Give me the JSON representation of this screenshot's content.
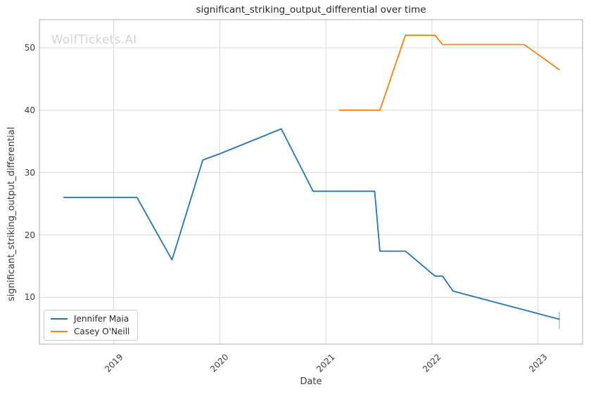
{
  "title": "significant_striking_output_differential over time",
  "watermark": "WolfTickets.AI",
  "axes": {
    "x_label": "Date",
    "y_label": "significant_striking_output_differential"
  },
  "legend": {
    "items": [
      {
        "label": "Jennifer Maia",
        "color": "#1f77b4"
      },
      {
        "label": "Casey O'Neill",
        "color": "#ff7f0e"
      }
    ]
  },
  "colors": {
    "grid": "#d9d9d9",
    "spine": "#ababab",
    "tick_text": "#3c3c3c",
    "title_text": "#262626",
    "watermark_text": "#d2d2d2",
    "series_blue": "#1f77b4",
    "series_orange": "#ff7f0e"
  },
  "chart_data": {
    "type": "line",
    "title": "significant_striking_output_differential over time",
    "xlabel": "Date",
    "ylabel": "significant_striking_output_differential",
    "xlim": [
      2018.3,
      2023.42
    ],
    "ylim": [
      2.5,
      54.5
    ],
    "xticks": [
      2019,
      2020,
      2021,
      2022,
      2023
    ],
    "yticks": [
      10,
      20,
      30,
      40,
      50
    ],
    "grid": true,
    "legend_position": "lower left",
    "series": [
      {
        "name": "Jennifer Maia",
        "color": "#1f77b4",
        "x": [
          2018.53,
          2019.22,
          2019.55,
          2019.84,
          2020.0,
          2020.58,
          2020.88,
          2021.46,
          2021.51,
          2021.75,
          2022.03,
          2022.1,
          2022.2,
          2023.2
        ],
        "y": [
          26,
          26,
          16,
          32,
          33,
          37,
          27,
          27,
          17.4,
          17.4,
          13.4,
          13.4,
          11,
          6.5
        ]
      },
      {
        "name": "Casey O'Neill",
        "color": "#ff7f0e",
        "x": [
          2021.13,
          2021.51,
          2021.75,
          2022.03,
          2022.1,
          2022.87,
          2023.2
        ],
        "y": [
          40,
          40,
          52,
          52,
          50.5,
          50.5,
          46.5
        ]
      }
    ],
    "errorbar": {
      "series": "Jennifer Maia",
      "x": 2023.2,
      "y": 6.5,
      "y_low": 4.9,
      "y_high": 7.7
    }
  }
}
